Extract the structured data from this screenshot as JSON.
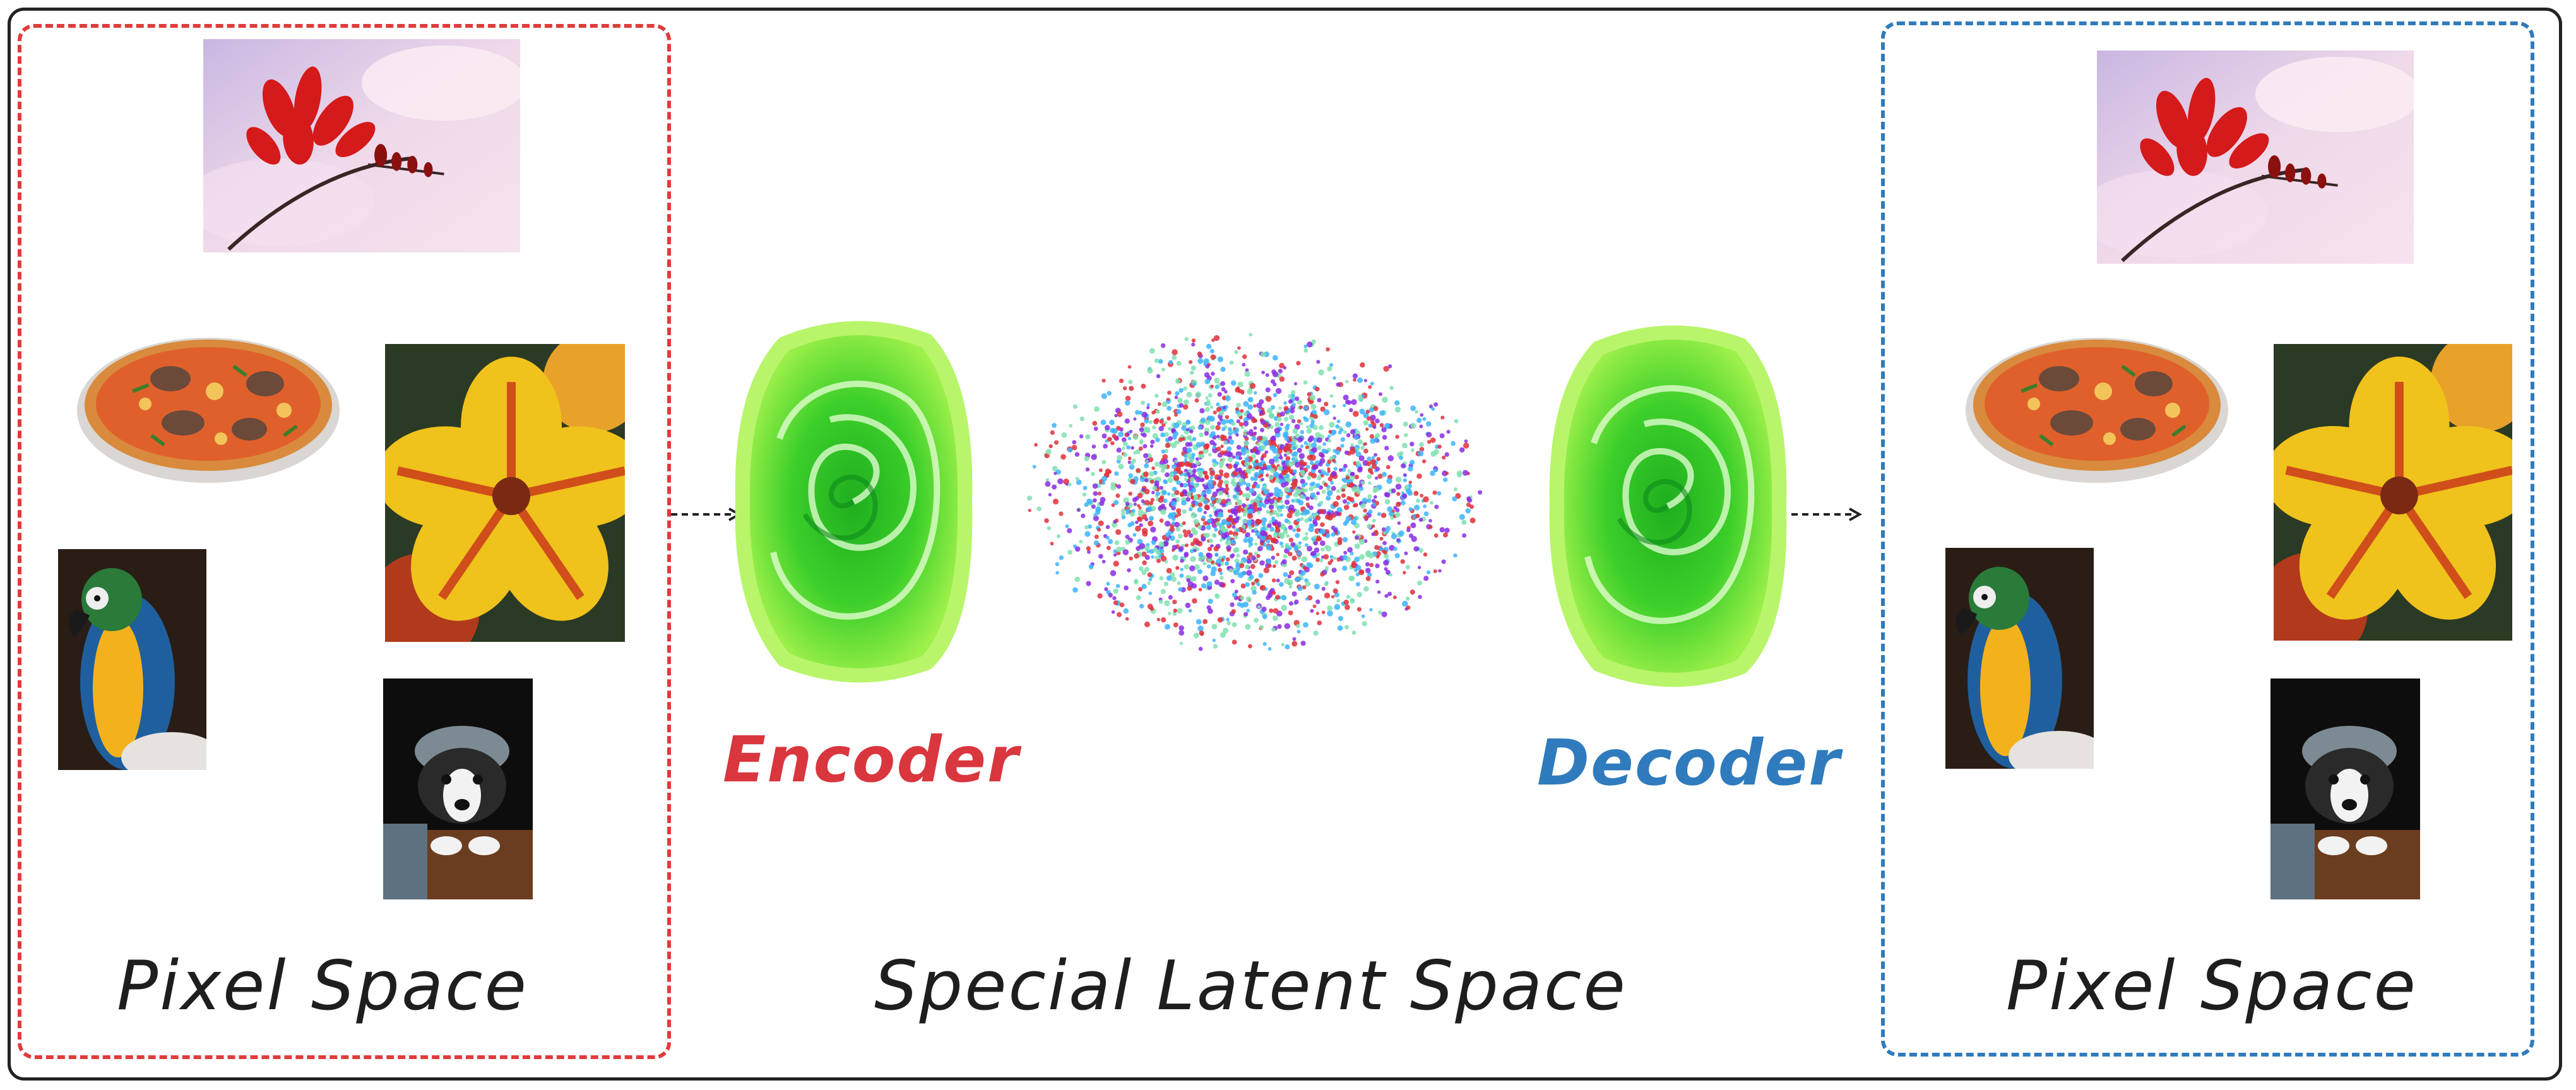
{
  "labels": {
    "pixel_space_left": "Pixel Space",
    "pixel_space_right": "Pixel Space",
    "encoder": "Encoder",
    "decoder": "Decoder",
    "latent_space": "Special Latent Space"
  },
  "colors": {
    "left_box_border": "#e03b3b",
    "right_box_border": "#2f7bbd",
    "encoder_text": "#d9363e",
    "decoder_text": "#2f7bbd",
    "portal_green": "#5fe32f",
    "latent_dot_colors": [
      "#e0303a",
      "#8a2be2",
      "#3cb4ff",
      "#7fe0b0"
    ]
  },
  "icons": {
    "images": [
      "flower-photo",
      "pizza-photo",
      "hibiscus-photo",
      "parrot-photo",
      "dog-photo"
    ],
    "encoder": "green-swirl-portal-icon",
    "decoder": "green-swirl-portal-icon",
    "latent": "latent-point-cloud"
  }
}
